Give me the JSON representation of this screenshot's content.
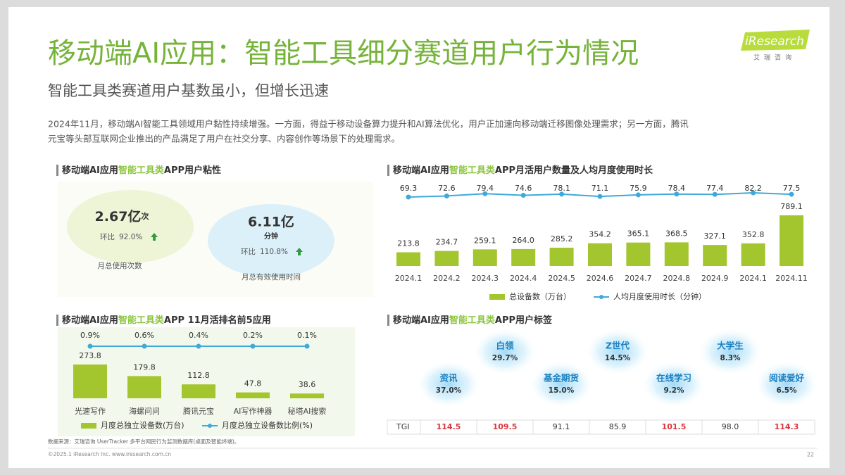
{
  "header": {
    "title": "移动端AI应用：智能工具细分赛道用户行为情况",
    "subtitle": "智能工具类赛道用户基数虽小，但增长迅速",
    "body": [
      "2024年11月，移动端AI智能工具领域用户黏性持续增强。一方面，得益于移动设备算力提升和AI算法优化，用户正加速向移动端迁移图像处理需求；另一方面，腾讯",
      "元宝等头部互联网企业推出的产品满足了用户在社交分享、内容创作等场景下的处理需求。"
    ],
    "logo": "iResearch",
    "logo_sub": "艾瑞咨询"
  },
  "stickiness": {
    "title_parts": [
      "移动端AI应用",
      "智能工具类",
      "APP用户粘性"
    ],
    "items": [
      {
        "value": "2.67亿",
        "unit": "次",
        "change_label": "环比",
        "change": "92.0%",
        "caption": "月总使用次数"
      },
      {
        "value": "6.11亿",
        "unit": "分钟",
        "change_label": "环比",
        "change": "110.8%",
        "caption": "月总有效使用时间"
      }
    ]
  },
  "chart_data": [
    {
      "type": "bar_line",
      "title_parts": [
        "移动端AI应用",
        "智能工具类",
        "APP月活用户数量及人均月度使用时长"
      ],
      "categories": [
        "2024.1",
        "2024.2",
        "2024.3",
        "2024.4",
        "2024.5",
        "2024.6",
        "2024.7",
        "2024.8",
        "2024.9",
        "2024.1",
        "2024.11"
      ],
      "series": [
        {
          "name": "总设备数（万台）",
          "kind": "bar",
          "color": "#a3c62f",
          "values": [
            213.8,
            234.7,
            259.1,
            264.0,
            285.2,
            354.2,
            365.1,
            368.5,
            327.1,
            352.8,
            789.1
          ],
          "value_labels": [
            "213.8",
            "234.7",
            "259.1",
            "264.0",
            "285.2",
            "354.2",
            "365.1",
            "368.5",
            "327.1",
            "352.8",
            "789.1"
          ]
        },
        {
          "name": "人均月度使用时长（分钟）",
          "kind": "line",
          "color": "#3fa9dc",
          "values": [
            69.3,
            72.6,
            79.4,
            74.6,
            78.1,
            71.1,
            75.9,
            78.4,
            77.4,
            82.2,
            77.5
          ],
          "value_labels": [
            "69.3",
            "72.6",
            "79.4",
            "74.6",
            "78.1",
            "71.1",
            "75.9",
            "78.4",
            "77.4",
            "82.2",
            "77.5"
          ]
        }
      ]
    },
    {
      "type": "bar_line",
      "title_parts": [
        "移动端AI应用",
        "智能工具类",
        "APP 11月活排名前5应用"
      ],
      "categories": [
        "光速写作",
        "海螺问问",
        "腾讯元宝",
        "AI写作神器",
        "秘塔AI搜索"
      ],
      "series": [
        {
          "name": "月度总独立设备数(万台)",
          "kind": "bar",
          "color": "#a3c62f",
          "values": [
            273.8,
            179.8,
            112.8,
            47.8,
            38.6
          ],
          "value_labels": [
            "273.8",
            "179.8",
            "112.8",
            "47.8",
            "38.6"
          ]
        },
        {
          "name": "月度总独立设备数比例(%)",
          "kind": "line",
          "color": "#3fa9dc",
          "values": [
            0.9,
            0.6,
            0.4,
            0.2,
            0.1
          ],
          "value_labels": [
            "0.9%",
            "0.6%",
            "0.4%",
            "0.2%",
            "0.1%"
          ]
        }
      ]
    }
  ],
  "user_tags": {
    "title_parts": [
      "移动端AI应用",
      "智能工具类",
      "APP用户标签"
    ],
    "tags": [
      {
        "name": "资讯",
        "share": "37.0%",
        "tgi": "114.5"
      },
      {
        "name": "白领",
        "share": "29.7%",
        "tgi": "109.5"
      },
      {
        "name": "基金期货",
        "share": "15.0%",
        "tgi": "91.1"
      },
      {
        "name": "Z世代",
        "share": "14.5%",
        "tgi": "85.9"
      },
      {
        "name": "在线学习",
        "share": "9.2%",
        "tgi": "101.5"
      },
      {
        "name": "大学生",
        "share": "8.3%",
        "tgi": "98.0"
      },
      {
        "name": "阅读爱好",
        "share": "6.5%",
        "tgi": "114.3"
      }
    ],
    "tgi_label": "TGI"
  },
  "footer": {
    "source": "数据来源：艾瑞咨询 UserTracker 多平台网民行为监测数据库(桌面及智能终端)。",
    "copyright": "©2025.1 iResearch Inc. www.iresearch.com.cn",
    "page": "22"
  }
}
